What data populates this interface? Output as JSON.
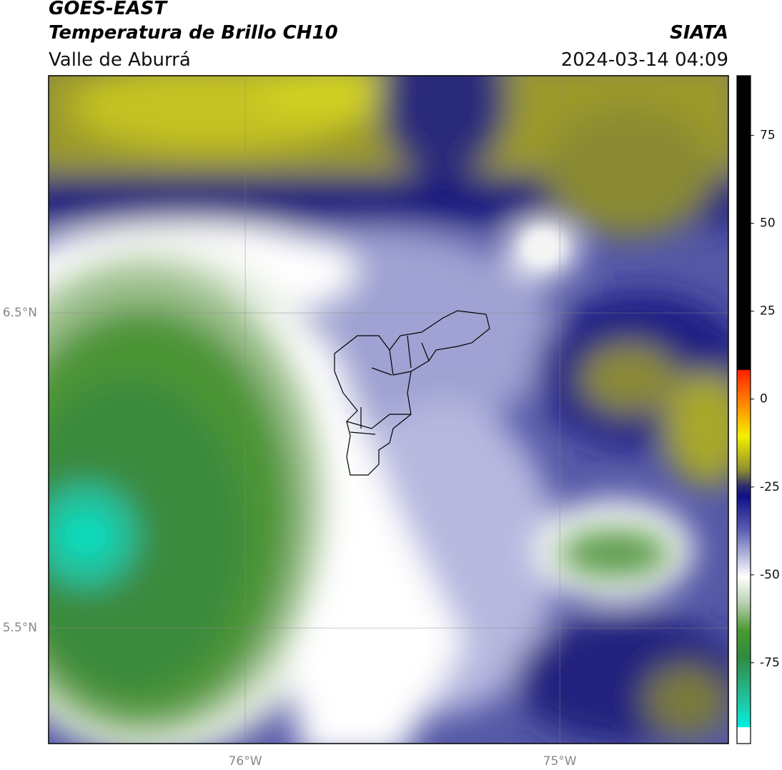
{
  "header": {
    "title": "GOES-EAST",
    "subtitle": "Temperatura de Brillo CH10",
    "region": "Valle de Aburrá",
    "source": "SIATA",
    "timestamp": "2024-03-14 04:09"
  },
  "map": {
    "lonlim": [
      -76.625,
      -74.464
    ],
    "latlim": [
      5.133,
      7.253
    ],
    "lonticks": [
      {
        "value": -76,
        "label": "76°W"
      },
      {
        "value": -75,
        "label": "75°W"
      }
    ],
    "latticks": [
      {
        "value": 6.5,
        "label": "6.5°N"
      },
      {
        "value": 5.5,
        "label": "5.5°N"
      }
    ],
    "grid": true
  },
  "colorbar": {
    "lim": [
      -98,
      92
    ],
    "ticks": [
      -75,
      -50,
      -25,
      0,
      25,
      50,
      75
    ]
  }
}
